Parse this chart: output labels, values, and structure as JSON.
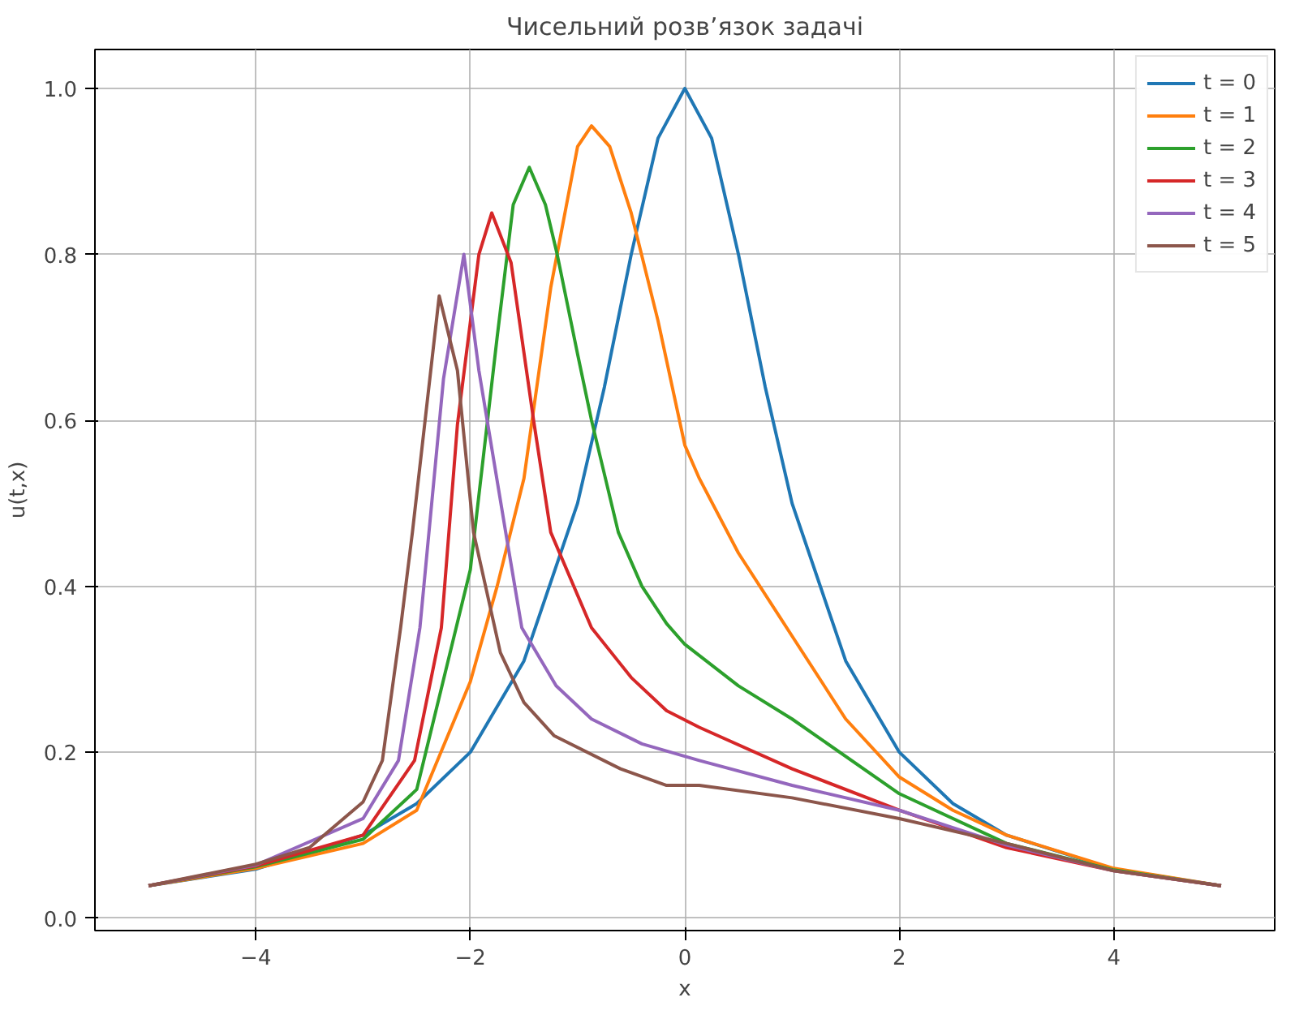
{
  "chart_data": {
    "type": "line",
    "title": "Чисельний розв’язок задачі",
    "xlabel": "x",
    "ylabel": "u(t,x)",
    "xlim": [
      -5.5,
      5.5
    ],
    "ylim": [
      -0.015,
      1.047
    ],
    "xticks": [
      {
        "value": -4,
        "label": "−4"
      },
      {
        "value": -2,
        "label": "−2"
      },
      0,
      2,
      4
    ],
    "yticks": [
      {
        "value": 0,
        "label": "0.0"
      },
      0.2,
      0.4,
      0.6,
      0.8,
      {
        "value": 1,
        "label": "1.0"
      }
    ],
    "grid": true,
    "legend": "top right",
    "line_style": "solid",
    "marker": "none",
    "series": [
      {
        "name": "t = 0",
        "color": "#1f77b4",
        "x": [
          -5,
          -4,
          -3,
          -2.5,
          -2,
          -1.5,
          -1,
          -0.75,
          -0.5,
          -0.25,
          0,
          0.25,
          0.5,
          0.75,
          1,
          1.5,
          2,
          2.5,
          3,
          4,
          5
        ],
        "values": [
          0.039,
          0.059,
          0.1,
          0.138,
          0.2,
          0.31,
          0.5,
          0.64,
          0.8,
          0.94,
          1.0,
          0.94,
          0.8,
          0.64,
          0.5,
          0.31,
          0.2,
          0.138,
          0.1,
          0.059,
          0.039
        ]
      },
      {
        "name": "t = 1",
        "color": "#ff7f0e",
        "x": [
          -5,
          -4,
          -3,
          -2.5,
          -2,
          -1.75,
          -1.5,
          -1.25,
          -1,
          -0.87,
          -0.7,
          -0.5,
          -0.25,
          0,
          0.135,
          0.5,
          1,
          1.5,
          2,
          2.5,
          3,
          4,
          5
        ],
        "values": [
          0.039,
          0.06,
          0.09,
          0.13,
          0.285,
          0.4,
          0.53,
          0.76,
          0.93,
          0.955,
          0.93,
          0.85,
          0.72,
          0.57,
          0.53,
          0.44,
          0.34,
          0.24,
          0.17,
          0.13,
          0.1,
          0.06,
          0.039
        ]
      },
      {
        "name": "t = 2",
        "color": "#2ca02c",
        "x": [
          -5,
          -4,
          -3,
          -2.5,
          -2,
          -1.75,
          -1.6,
          -1.45,
          -1.3,
          -1.19,
          -1,
          -0.87,
          -0.62,
          -0.4,
          -0.17,
          0,
          0.5,
          1,
          2,
          3,
          4,
          5
        ],
        "values": [
          0.039,
          0.062,
          0.095,
          0.155,
          0.42,
          0.7,
          0.86,
          0.905,
          0.86,
          0.8,
          0.68,
          0.6,
          0.465,
          0.4,
          0.355,
          0.33,
          0.28,
          0.24,
          0.15,
          0.09,
          0.058,
          0.039
        ]
      },
      {
        "name": "t = 3",
        "color": "#d62728",
        "x": [
          -5,
          -4,
          -3,
          -2.52,
          -2.27,
          -2.12,
          -1.92,
          -1.8,
          -1.62,
          -1.41,
          -1.25,
          -0.87,
          -0.5,
          -0.17,
          0.135,
          1,
          2,
          3,
          4,
          5
        ],
        "values": [
          0.039,
          0.063,
          0.1,
          0.19,
          0.35,
          0.595,
          0.8,
          0.85,
          0.79,
          0.6,
          0.465,
          0.35,
          0.29,
          0.25,
          0.23,
          0.18,
          0.13,
          0.085,
          0.057,
          0.039
        ]
      },
      {
        "name": "t = 4",
        "color": "#9467bd",
        "x": [
          -5,
          -4,
          -3,
          -2.67,
          -2.47,
          -2.25,
          -2.06,
          -1.92,
          -1.67,
          -1.52,
          -1.2,
          -0.87,
          -0.4,
          0.135,
          1,
          2,
          3,
          4,
          5
        ],
        "values": [
          0.039,
          0.064,
          0.12,
          0.19,
          0.35,
          0.65,
          0.8,
          0.66,
          0.465,
          0.35,
          0.28,
          0.24,
          0.21,
          0.19,
          0.16,
          0.13,
          0.088,
          0.057,
          0.039
        ]
      },
      {
        "name": "t = 5",
        "color": "#8c564b",
        "x": [
          -5,
          -4,
          -3.5,
          -3,
          -2.82,
          -2.65,
          -2.54,
          -2.29,
          -2.12,
          -1.97,
          -1.72,
          -1.5,
          -1.22,
          -0.6,
          -0.17,
          0.135,
          1,
          2,
          3,
          4,
          5
        ],
        "values": [
          0.039,
          0.065,
          0.085,
          0.14,
          0.19,
          0.35,
          0.465,
          0.75,
          0.66,
          0.465,
          0.32,
          0.26,
          0.22,
          0.18,
          0.16,
          0.16,
          0.145,
          0.12,
          0.09,
          0.057,
          0.039
        ]
      }
    ]
  }
}
